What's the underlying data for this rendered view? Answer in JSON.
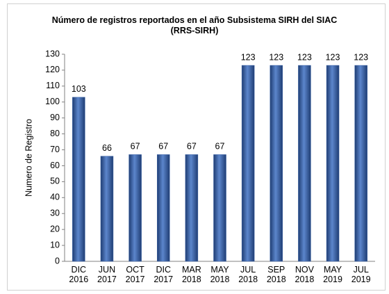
{
  "chart_data": {
    "type": "bar",
    "title": "Número de registros reportados en el año Subsistema SIRH del SIAC (RRS-SIRH)",
    "y_label": "Numero de Registro",
    "categories": [
      [
        "DIC",
        "2016"
      ],
      [
        "JUN",
        "2017"
      ],
      [
        "OCT",
        "2017"
      ],
      [
        "DIC",
        "2017"
      ],
      [
        "MAR",
        "2018"
      ],
      [
        "MAY",
        "2018"
      ],
      [
        "JUL",
        "2018"
      ],
      [
        "SEP",
        "2018"
      ],
      [
        "NOV",
        "2018"
      ],
      [
        "MAY",
        "2019"
      ],
      [
        "JUL",
        "2019"
      ]
    ],
    "values": [
      103,
      66,
      67,
      67,
      67,
      67,
      123,
      123,
      123,
      123,
      123
    ],
    "color": "#3a63a8",
    "ylim": [
      0,
      130
    ],
    "yticks": [
      0,
      10,
      20,
      30,
      40,
      50,
      60,
      70,
      80,
      90,
      100,
      110,
      120,
      130
    ],
    "grid": false
  }
}
